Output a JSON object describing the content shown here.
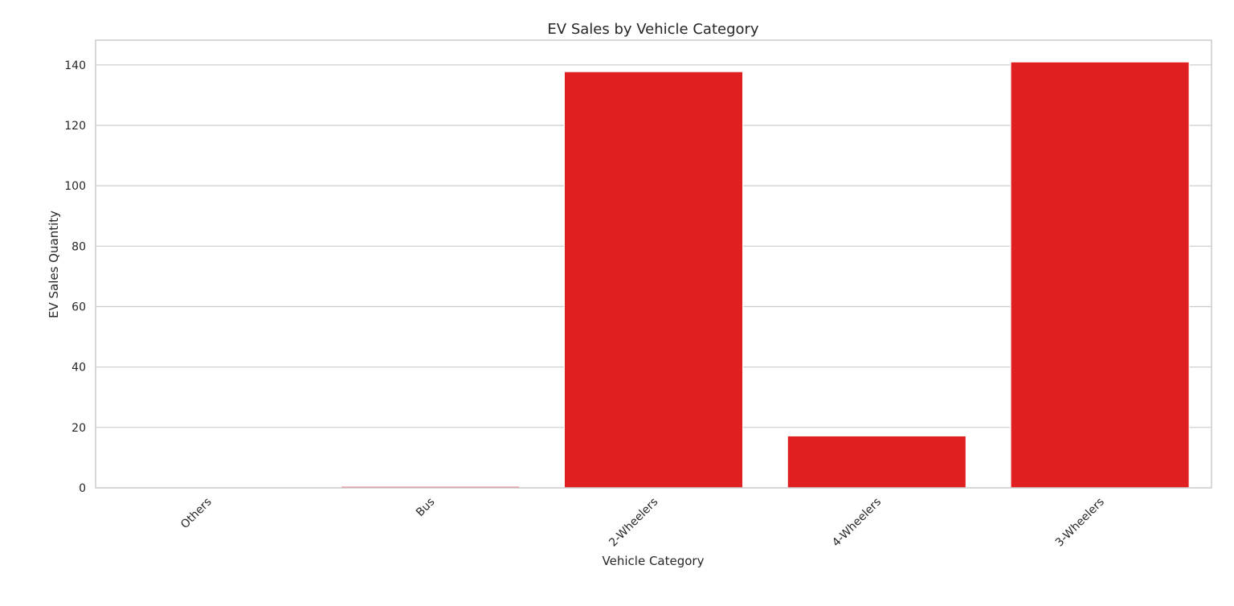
{
  "chart_data": {
    "type": "bar",
    "title": "EV Sales by Vehicle Category",
    "xlabel": "Vehicle Category",
    "ylabel": "EV Sales Quantity",
    "categories": [
      "Others",
      "Bus",
      "2-Wheelers",
      "4-Wheelers",
      "3-Wheelers"
    ],
    "values": [
      0,
      0.5,
      137.8,
      17.2,
      141.0
    ],
    "ylim": [
      0,
      148.2
    ],
    "yticks": [
      0,
      20,
      40,
      60,
      80,
      100,
      120,
      140
    ],
    "grid": true,
    "grid_axis": "y",
    "bar_color": "#e02020",
    "bar_edge_color": "#ffffff",
    "xtick_rotation": 45
  }
}
